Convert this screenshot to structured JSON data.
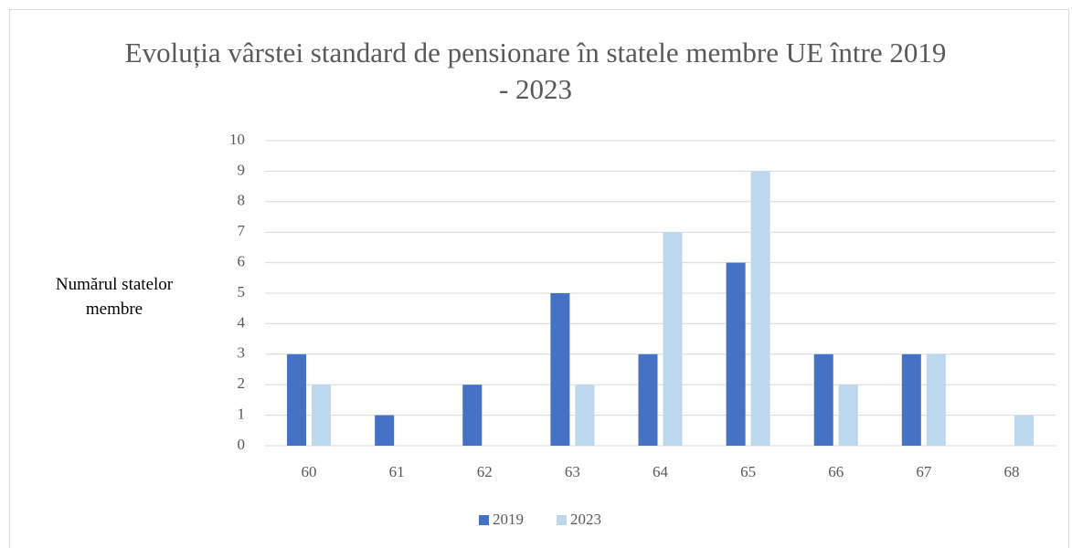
{
  "chart_data": {
    "type": "bar",
    "title": "Evoluția vârstei standard de pensionare în statele membre UE între 2019 - 2023",
    "y_label": "Numărul statelor membre",
    "categories": [
      "60",
      "61",
      "62",
      "63",
      "64",
      "65",
      "66",
      "67",
      "68"
    ],
    "series": [
      {
        "name": "2019",
        "color": "#4472c4",
        "values": [
          3,
          1,
          2,
          5,
          3,
          6,
          3,
          3,
          0
        ]
      },
      {
        "name": "2023",
        "color": "#bdd7ee",
        "values": [
          2,
          0,
          0,
          2,
          7,
          9,
          2,
          3,
          1
        ]
      }
    ],
    "ylim": [
      0,
      10
    ],
    "yticks": [
      0,
      1,
      2,
      3,
      4,
      5,
      6,
      7,
      8,
      9,
      10
    ],
    "grid": true,
    "legend": "bottom"
  }
}
